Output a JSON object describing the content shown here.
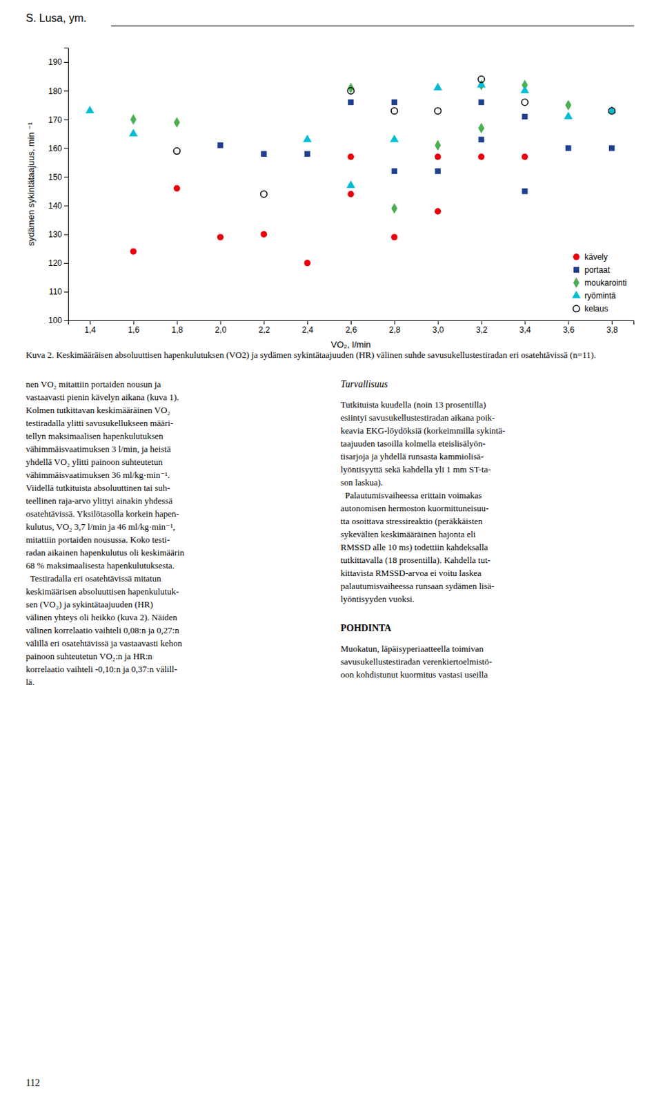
{
  "header": "S. Lusa, ym.",
  "chart_data": {
    "type": "scatter",
    "xlabel": "VO₂, l/min",
    "ylabel": "sydämen sykintätaajuus, min ⁻¹",
    "xlim": [
      1.3,
      3.9
    ],
    "ylim": [
      100,
      195
    ],
    "xticks": [
      {
        "value": 1.4,
        "label": "1,4"
      },
      {
        "value": 1.6,
        "label": "1,6"
      },
      {
        "value": 1.8,
        "label": "1,8"
      },
      {
        "value": 2.0,
        "label": "2,0"
      },
      {
        "value": 2.2,
        "label": "2,2"
      },
      {
        "value": 2.4,
        "label": "2,4"
      },
      {
        "value": 2.6,
        "label": "2,6"
      },
      {
        "value": 2.8,
        "label": "2,8"
      },
      {
        "value": 3.0,
        "label": "3,0"
      },
      {
        "value": 3.2,
        "label": "3,2"
      },
      {
        "value": 3.4,
        "label": "3,4"
      },
      {
        "value": 3.6,
        "label": "3,6"
      },
      {
        "value": 3.8,
        "label": "3,8"
      }
    ],
    "yticks": [
      100,
      110,
      120,
      130,
      140,
      150,
      160,
      170,
      180,
      190
    ],
    "grid": false,
    "legend": "lower-right",
    "series": [
      {
        "name": "kävely",
        "color": "#e8000d",
        "marker": "circle",
        "x": [
          1.6,
          1.8,
          2.0,
          2.2,
          2.4,
          2.6,
          2.6,
          2.8,
          3.0,
          3.0,
          3.2,
          3.4
        ],
        "values": [
          124,
          146,
          129,
          130,
          120,
          157,
          144,
          129,
          157,
          138,
          157,
          157
        ]
      },
      {
        "name": "portaat",
        "color": "#1f3f8f",
        "marker": "square",
        "x": [
          2.0,
          2.2,
          2.4,
          2.6,
          2.8,
          2.8,
          3.0,
          3.2,
          3.2,
          3.4,
          3.4,
          3.6,
          3.8
        ],
        "values": [
          161,
          158,
          158,
          176,
          176,
          152,
          152,
          176,
          163,
          171,
          145,
          160,
          160
        ]
      },
      {
        "name": "moukarointi",
        "color": "#4caf50",
        "marker": "diamond",
        "x": [
          1.6,
          1.8,
          2.6,
          2.8,
          3.0,
          3.2,
          3.2,
          3.4,
          3.6
        ],
        "values": [
          170,
          169,
          181,
          139,
          161,
          182,
          167,
          182,
          175
        ]
      },
      {
        "name": "ryömintä",
        "color": "#00bcd4",
        "marker": "triangle",
        "x": [
          1.4,
          1.6,
          2.4,
          2.6,
          2.8,
          3.0,
          3.2,
          3.4,
          3.6,
          3.8
        ],
        "values": [
          173,
          165,
          163,
          147,
          163,
          181,
          182,
          180,
          171,
          173
        ]
      },
      {
        "name": "kelaus",
        "color": "#000000",
        "marker": "circle-open",
        "x": [
          1.8,
          2.2,
          2.6,
          2.8,
          3.0,
          3.2,
          3.4,
          3.8
        ],
        "values": [
          159,
          144,
          180,
          173,
          173,
          184,
          176,
          173
        ]
      }
    ]
  },
  "caption": "Kuva 2. Keskimääräisen absoluuttisen hapenkulutuksen (VO2) ja sydämen sykintätaajuuden (HR) välinen suhde savusukellustestiradan eri osatehtävissä (n=11).",
  "body_left": "nen VO₂ mitattiin portaiden nousun ja\nvastaavasti pienin kävelyn aikana (kuva 1).\nKolmen tutkittavan keskimääräinen VO₂\ntestiradalla ylitti savusukellukseen määri-\ntellyn maksimaalisen hapenkulutuksen\nvähimmäisvaatimuksen 3 l/min, ja heistä\nyhdellä VO₂ ylitti painoon suhteutetun\nvähimmäisvaatimuksen 36 ml/kg·min⁻¹.\nViidellä tutkituista absoluuttinen tai suh-\nteellinen raja-arvo ylittyi ainakin yhdessä\nosatehtävissä. Yksilötasolla korkein hapen-\nkulutus, VO₂ 3,7 l/min ja 46 ml/kg·min⁻¹,\nmitattiin portaiden nousussa. Koko testi-\nradan aikainen hapenkulutus oli keskimäärin\n68 % maksimaalisesta hapenkulutuksesta.\n  Testiradalla eri osatehtävissä mitatun\nkeskimäärisen absoluuttisen hapenkulutuk-\nsen (VO₂) ja sykintätaajuuden (HR)\nvälinen yhteys oli heikko (kuva 2). Näiden\nvälinen korrelaatio vaihteli 0,08:n ja 0,27:n\nvälillä eri osatehtävissä ja vastaavasti kehon\npainoon suhteutetun VO₂:n ja HR:n\nkorrelaatio vaihteli -0,10:n ja 0,37:n välill-\nlä.",
  "body_right_title": "Turvallisuus",
  "body_right": "Tutkituista kuudella (noin 13 prosentilla)\nesiintyi savusukellustestiradan aikana poik-\nkeavia EKG-löydöksiä (korkeimmilla sykintä-\ntaajuuden tasoilla kolmella eteislisälyön-\ntisarjoja ja yhdellä runsasta kammiolisä-\nlyöntisyyttä sekä kahdella yli 1 mm ST-ta-\nson laskua).\n  Palautumisvaiheessa erittain voimakas\nautonomisen hermoston kuormittuneisuu-\ntta osoittava stressireaktio (peräkkäisten\nsykevälien keskimääräinen hajonta eli\nRMSSD alle 10 ms) todettiin kahdeksalla\ntutkittavalla (18 prosentilla). Kahdella tut-\nkittavista RMSSD-arvoa ei voitu laskea\npalautumisvaiheessa runsaan sydämen lisä-\nlyöntisyyden vuoksi.",
  "pohdinta_title": "POHDINTA",
  "pohdinta_body": "Muokatun, läpäisyperiaatteella toimivan\nsavusukellustestiradan verenkiertoelmistö-\noon kohdistunut kuormitus vastasi useilla",
  "page_number": "112"
}
